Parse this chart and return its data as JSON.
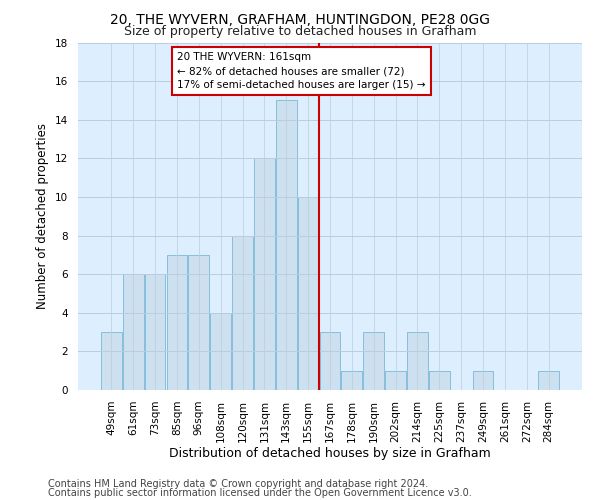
{
  "title1": "20, THE WYVERN, GRAFHAM, HUNTINGDON, PE28 0GG",
  "title2": "Size of property relative to detached houses in Grafham",
  "xlabel": "Distribution of detached houses by size in Grafham",
  "ylabel": "Number of detached properties",
  "categories": [
    "49sqm",
    "61sqm",
    "73sqm",
    "85sqm",
    "96sqm",
    "108sqm",
    "120sqm",
    "131sqm",
    "143sqm",
    "155sqm",
    "167sqm",
    "178sqm",
    "190sqm",
    "202sqm",
    "214sqm",
    "225sqm",
    "237sqm",
    "249sqm",
    "261sqm",
    "272sqm",
    "284sqm"
  ],
  "values": [
    3,
    6,
    6,
    7,
    7,
    4,
    8,
    12,
    15,
    10,
    3,
    1,
    3,
    1,
    3,
    1,
    0,
    1,
    0,
    0,
    1
  ],
  "bar_color": "#cce0f0",
  "bar_edge_color": "#7ab8d9",
  "vline_color": "#cc0000",
  "annotation_line1": "20 THE WYVERN: 161sqm",
  "annotation_line2": "← 82% of detached houses are smaller (72)",
  "annotation_line3": "17% of semi-detached houses are larger (15) →",
  "annotation_box_color": "#ffffff",
  "annotation_box_edge": "#cc0000",
  "ylim": [
    0,
    18
  ],
  "yticks": [
    0,
    2,
    4,
    6,
    8,
    10,
    12,
    14,
    16,
    18
  ],
  "footer1": "Contains HM Land Registry data © Crown copyright and database right 2024.",
  "footer2": "Contains public sector information licensed under the Open Government Licence v3.0.",
  "bg_color": "#ddeeff",
  "grid_color": "#bbccdd",
  "title1_fontsize": 10,
  "title2_fontsize": 9,
  "xlabel_fontsize": 9,
  "ylabel_fontsize": 8.5,
  "tick_fontsize": 7.5,
  "footer_fontsize": 7
}
